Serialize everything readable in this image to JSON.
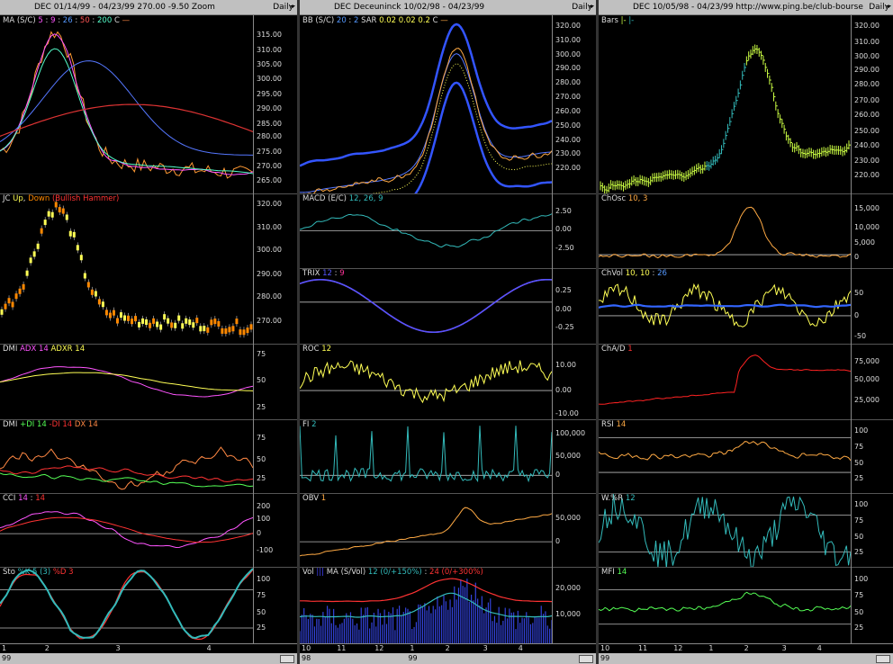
{
  "windows": [
    {
      "title": "DEC  01/14/99 - 04/23/99   270.00  -9.50   Zoom",
      "period": "Daily",
      "panels": [
        {
          "title": [
            [
              "MA (S/C) ",
              "#ddd"
            ],
            [
              "5",
              "#ff55ff"
            ],
            [
              " : ",
              "#ddd"
            ],
            [
              "9",
              "#ff55ff"
            ],
            [
              " : ",
              "#ddd"
            ],
            [
              "26",
              "#5599ff"
            ],
            [
              " : ",
              "#ddd"
            ],
            [
              "50",
              "#ff5555"
            ],
            [
              " : ",
              "#ddd"
            ],
            [
              "200",
              "#55ffcc"
            ],
            [
              "    C ",
              "#ddd"
            ],
            [
              "—",
              "#ff8844"
            ]
          ],
          "axis": [
            "315.00",
            "310.00",
            "305.00",
            "300.00",
            "295.00",
            "290.00",
            "285.00",
            "280.00",
            "275.00",
            "270.00",
            "265.00"
          ]
        },
        {
          "title": [
            [
              "JC ",
              "#ddd"
            ],
            [
              "Up",
              "#ffff55"
            ],
            [
              ", ",
              "#ddd"
            ],
            [
              "Down",
              "#ff8800"
            ],
            [
              " (Bullish Hammer)",
              "#ff3333"
            ]
          ],
          "axis": [
            "320.00",
            "310.00",
            "300.00",
            "290.00",
            "280.00",
            "270.00"
          ]
        },
        {
          "title": [
            [
              "DMI  ",
              "#ddd"
            ],
            [
              "ADX 14",
              "#ff55ff"
            ],
            [
              "  ",
              "#ddd"
            ],
            [
              "ADXR 14",
              "#ffff55"
            ]
          ],
          "axis": [
            "75",
            "50",
            "25"
          ]
        },
        {
          "title": [
            [
              "DMI  ",
              "#ddd"
            ],
            [
              "+DI 14",
              "#55ff55"
            ],
            [
              "  ",
              "#ddd"
            ],
            [
              "-DI 14",
              "#ff3333"
            ],
            [
              "  ",
              "#ddd"
            ],
            [
              "DX 14",
              "#ff8844"
            ]
          ],
          "axis": [
            "75",
            "50",
            "25"
          ]
        },
        {
          "title": [
            [
              "CCI  ",
              "#ddd"
            ],
            [
              "14",
              "#ff55ff"
            ],
            [
              " : ",
              "#ddd"
            ],
            [
              "14",
              "#ff3333"
            ]
          ],
          "axis": [
            "200",
            "100",
            "0",
            "-100"
          ]
        },
        {
          "title": [
            [
              "Sto  ",
              "#ddd"
            ],
            [
              "%K 5 (3)",
              "#33bbbb"
            ],
            [
              "  ",
              "#ddd"
            ],
            [
              "%D 3",
              "#ff3333"
            ]
          ],
          "axis": [
            "100",
            "75",
            "50",
            "25"
          ]
        }
      ],
      "xlabels": [
        "1",
        "2",
        "3",
        "4"
      ],
      "year": "99"
    },
    {
      "title": "DEC  Deceuninck  10/02/98 - 04/23/99",
      "period": "Daily",
      "panels": [
        {
          "title": [
            [
              "BB (S/C) ",
              "#ddd"
            ],
            [
              "20",
              "#5599ff"
            ],
            [
              " : ",
              "#ddd"
            ],
            [
              "2",
              "#5599ff"
            ],
            [
              "   SAR  ",
              "#ddd"
            ],
            [
              "0.02",
              "#ffff55"
            ],
            [
              "  ",
              "#ddd"
            ],
            [
              "0.02",
              "#ffff55"
            ],
            [
              "  ",
              "#ddd"
            ],
            [
              "0.2",
              "#ffff55"
            ],
            [
              "    C ",
              "#ddd"
            ],
            [
              "—",
              "#ffaa44"
            ]
          ],
          "axis": [
            "320.00",
            "310.00",
            "300.00",
            "290.00",
            "280.00",
            "270.00",
            "260.00",
            "250.00",
            "240.00",
            "230.00",
            "220.00"
          ]
        },
        {
          "title": [
            [
              "MACD (E/C) ",
              "#ddd"
            ],
            [
              "12, 26, 9",
              "#33bbbb"
            ]
          ],
          "axis": [
            "2.50",
            "0.00",
            "-2.50"
          ]
        },
        {
          "title": [
            [
              "TRIX  ",
              "#ddd"
            ],
            [
              "12",
              "#5555ff"
            ],
            [
              " : ",
              "#ddd"
            ],
            [
              "9",
              "#ff3399"
            ]
          ],
          "axis": [
            "0.25",
            "0.00",
            "-0.25"
          ]
        },
        {
          "title": [
            [
              "ROC  ",
              "#ddd"
            ],
            [
              "12",
              "#ffff55"
            ]
          ],
          "axis": [
            "10.00",
            "0.00",
            "-10.00"
          ]
        },
        {
          "title": [
            [
              "FI  ",
              "#ddd"
            ],
            [
              "2",
              "#33bbbb"
            ]
          ],
          "axis": [
            "100,000",
            "50,000",
            "0"
          ]
        },
        {
          "title": [
            [
              "OBV  ",
              "#ddd"
            ],
            [
              "1",
              "#ffaa44"
            ]
          ],
          "axis": [
            "50,000",
            "0"
          ]
        },
        {
          "title": [
            [
              "Vol ",
              "#ddd"
            ],
            [
              "|||",
              "#4444ff"
            ],
            [
              "  MA (S/Vol) ",
              "#ddd"
            ],
            [
              "12 (0/+150%)",
              "#33bbbb"
            ],
            [
              " : ",
              "#ddd"
            ],
            [
              "24 (0/+300%)",
              "#ff3333"
            ]
          ],
          "axis": [
            "20,000",
            "10,000"
          ]
        }
      ],
      "xlabels": [
        "10",
        "11",
        "12",
        "1",
        "2",
        "3",
        "4"
      ],
      "year": "98",
      "year2": "99"
    },
    {
      "title": "DEC  10/05/98 - 04/23/99    http://www.ping.be/club-bourse",
      "period": "Daily",
      "panels": [
        {
          "title": [
            [
              "Bars ",
              "#ddd"
            ],
            [
              "|-",
              "#ccff44"
            ],
            [
              " ",
              "#ddd"
            ],
            [
              "|-",
              "#33bbbb"
            ]
          ],
          "axis": [
            "320.00",
            "310.00",
            "300.00",
            "290.00",
            "280.00",
            "270.00",
            "260.00",
            "250.00",
            "240.00",
            "230.00",
            "220.00"
          ]
        },
        {
          "title": [
            [
              "ChOsc  ",
              "#ddd"
            ],
            [
              "10, 3",
              "#ffaa44"
            ]
          ],
          "axis": [
            "15,000",
            "10,000",
            "5,000",
            "0"
          ]
        },
        {
          "title": [
            [
              "ChVol  ",
              "#ddd"
            ],
            [
              "10, 10",
              "#ffff55"
            ],
            [
              " : ",
              "#ddd"
            ],
            [
              "26",
              "#5599ff"
            ]
          ],
          "axis": [
            "50",
            "0",
            "-50"
          ]
        },
        {
          "title": [
            [
              "ChA/D  ",
              "#ddd"
            ],
            [
              "1",
              "#ff3333"
            ]
          ],
          "axis": [
            "75,000",
            "50,000",
            "25,000"
          ]
        },
        {
          "title": [
            [
              "RSI  ",
              "#ddd"
            ],
            [
              "14",
              "#ffaa44"
            ]
          ],
          "axis": [
            "100",
            "75",
            "50",
            "25"
          ]
        },
        {
          "title": [
            [
              "W.%R  ",
              "#ddd"
            ],
            [
              "12",
              "#33bbbb"
            ]
          ],
          "axis": [
            "100",
            "75",
            "50",
            "25"
          ]
        },
        {
          "title": [
            [
              "MFI  ",
              "#ddd"
            ],
            [
              "14",
              "#55ff55"
            ]
          ],
          "axis": [
            "100",
            "75",
            "50",
            "25"
          ]
        }
      ],
      "xlabels": [
        "10",
        "11",
        "12",
        "1",
        "2",
        "3",
        "4"
      ],
      "year": "99"
    }
  ]
}
